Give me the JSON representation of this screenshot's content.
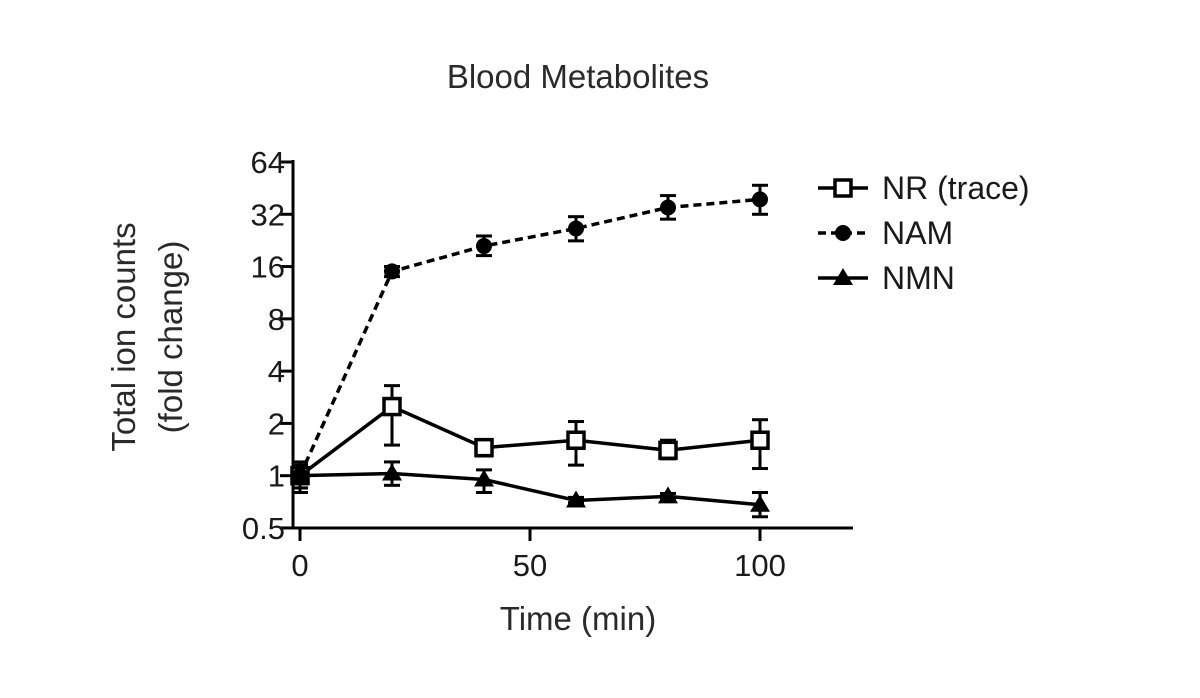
{
  "chart_data": {
    "type": "line",
    "title": "Blood Metabolites",
    "xlabel": "Time (min)",
    "ylabel": [
      "Total ion counts",
      "(fold change)"
    ],
    "x_ticks": [
      0,
      50,
      100
    ],
    "x_tick_labels": [
      "0",
      "50",
      "100"
    ],
    "xlim": [
      0,
      120
    ],
    "y_scale": "log2",
    "y_ticks": [
      0.5,
      1,
      2,
      4,
      8,
      16,
      32,
      64
    ],
    "y_tick_labels": [
      "0.5",
      "1",
      "2",
      "4",
      "8",
      "16",
      "32",
      "64"
    ],
    "ylim": [
      0.5,
      64
    ],
    "grid": false,
    "legend_position": "right",
    "x": [
      0,
      20,
      40,
      60,
      80,
      100
    ],
    "series": [
      {
        "name": "NR (trace)",
        "marker": "open-square",
        "line": "solid",
        "values": [
          1.0,
          2.5,
          1.45,
          1.6,
          1.4,
          1.6
        ],
        "err_low": [
          0.8,
          1.5,
          1.3,
          1.15,
          1.25,
          1.1
        ],
        "err_high": [
          1.2,
          3.3,
          1.6,
          2.05,
          1.6,
          2.1
        ]
      },
      {
        "name": "NAM",
        "marker": "filled-circle",
        "line": "dashed",
        "values": [
          1.0,
          15.0,
          21.0,
          26.5,
          35.0,
          39.0
        ],
        "err_low": [
          0.85,
          14.0,
          18.5,
          22.5,
          30.0,
          32.0
        ],
        "err_high": [
          1.15,
          16.0,
          24.0,
          31.0,
          41.0,
          47.0
        ]
      },
      {
        "name": "NMN",
        "marker": "filled-triangle",
        "line": "solid",
        "values": [
          1.0,
          1.03,
          0.95,
          0.72,
          0.76,
          0.68
        ],
        "err_low": [
          0.85,
          0.88,
          0.8,
          0.7,
          0.74,
          0.58
        ],
        "err_high": [
          1.15,
          1.2,
          1.08,
          0.75,
          0.79,
          0.8
        ]
      }
    ]
  }
}
